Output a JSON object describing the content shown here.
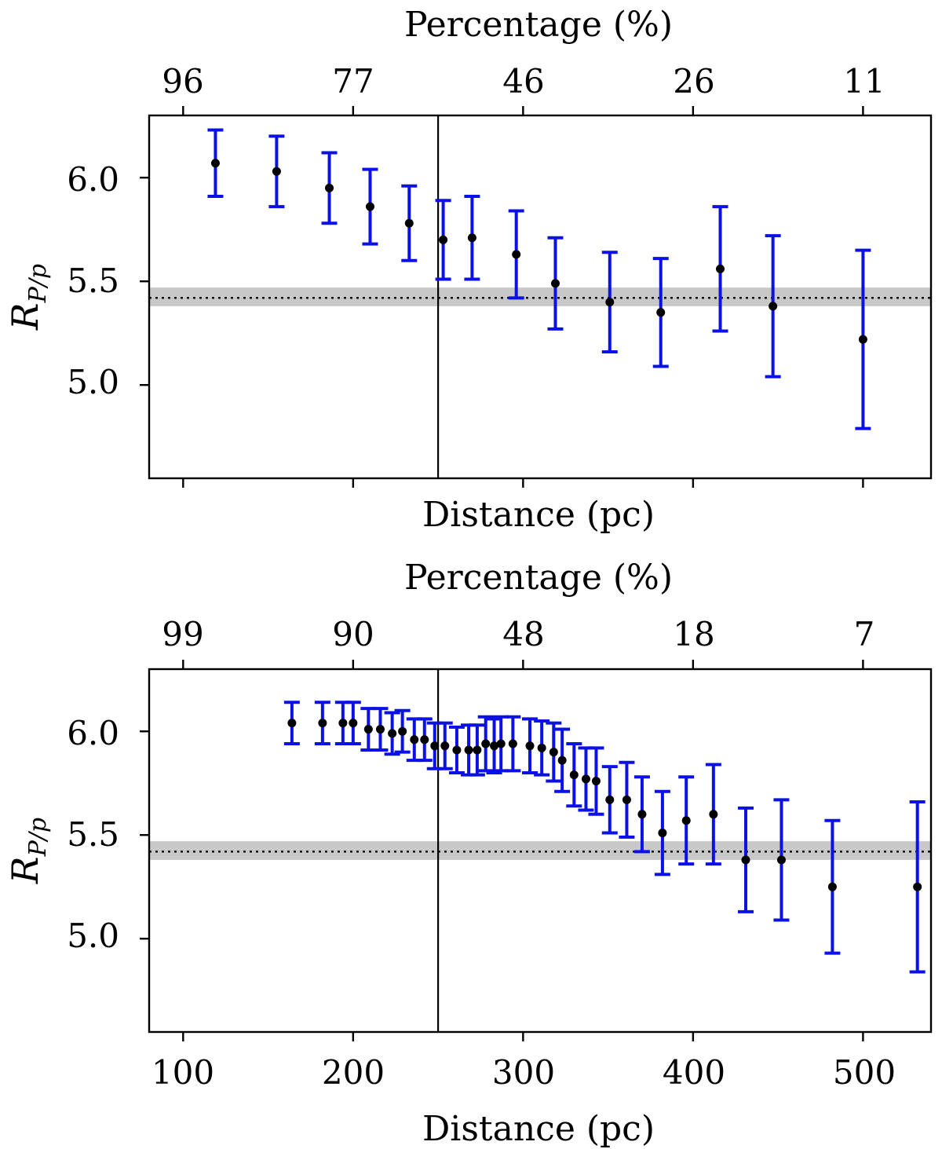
{
  "chart_data": [
    {
      "type": "errorbar",
      "title": "",
      "xlabel": "Distance (pc)",
      "xlabel_top": "Percentage (%)",
      "ylabel_main": "R",
      "ylabel_sub": "P/p",
      "xlim": [
        80,
        540
      ],
      "ylim": [
        4.55,
        6.3
      ],
      "yticks": [
        5.0,
        5.5,
        6.0
      ],
      "ytick_labels": [
        "5.0",
        "5.5",
        "6.0"
      ],
      "xticks": [
        100,
        200,
        300,
        400,
        500
      ],
      "xtick_labels": [],
      "top_tick_labels": [
        "96",
        "77",
        "46",
        "26",
        "11"
      ],
      "vline_x": 250,
      "hline_y": 5.42,
      "hband": [
        5.38,
        5.47
      ],
      "series": [
        {
          "name": "R_P/p",
          "color": "#0a10e6",
          "marker_color": "#000000",
          "x": [
            119,
            155,
            186,
            210,
            233,
            253,
            270,
            296,
            319,
            351,
            381,
            416,
            447,
            500
          ],
          "y": [
            6.07,
            6.03,
            5.95,
            5.86,
            5.78,
            5.7,
            5.71,
            5.63,
            5.49,
            5.4,
            5.35,
            5.56,
            5.38,
            5.22
          ],
          "err": [
            0.16,
            0.17,
            0.17,
            0.18,
            0.18,
            0.19,
            0.2,
            0.21,
            0.22,
            0.24,
            0.26,
            0.3,
            0.34,
            0.43
          ]
        }
      ]
    },
    {
      "type": "errorbar",
      "title": "",
      "xlabel": "Distance (pc)",
      "xlabel_top": "Percentage (%)",
      "ylabel_main": "R",
      "ylabel_sub": "P/p",
      "xlim": [
        80,
        540
      ],
      "ylim": [
        4.55,
        6.3
      ],
      "yticks": [
        5.0,
        5.5,
        6.0
      ],
      "ytick_labels": [
        "5.0",
        "5.5",
        "6.0"
      ],
      "xticks": [
        100,
        200,
        300,
        400,
        500
      ],
      "xtick_labels": [
        "100",
        "200",
        "300",
        "400",
        "500"
      ],
      "top_tick_labels": [
        "99",
        "90",
        "48",
        "18",
        "7"
      ],
      "vline_x": 250,
      "hline_y": 5.42,
      "hband": [
        5.38,
        5.47
      ],
      "series": [
        {
          "name": "R_P/p",
          "color": "#0a10e6",
          "marker_color": "#000000",
          "x": [
            164,
            182,
            194,
            200,
            209,
            216,
            223,
            229,
            236,
            242,
            248,
            254,
            261,
            268,
            273,
            278,
            283,
            287,
            294,
            304,
            311,
            318,
            323,
            330,
            337,
            343,
            351,
            361,
            370,
            382,
            396,
            412,
            431,
            452,
            482,
            532
          ],
          "y": [
            6.04,
            6.04,
            6.04,
            6.04,
            6.01,
            6.01,
            5.99,
            6.0,
            5.96,
            5.96,
            5.93,
            5.93,
            5.91,
            5.91,
            5.91,
            5.94,
            5.93,
            5.94,
            5.94,
            5.93,
            5.92,
            5.9,
            5.86,
            5.79,
            5.77,
            5.76,
            5.67,
            5.67,
            5.6,
            5.51,
            5.57,
            5.6,
            5.38,
            5.38,
            5.25,
            5.25
          ],
          "err": [
            0.1,
            0.1,
            0.1,
            0.1,
            0.1,
            0.1,
            0.1,
            0.1,
            0.1,
            0.1,
            0.11,
            0.11,
            0.11,
            0.12,
            0.12,
            0.13,
            0.13,
            0.13,
            0.13,
            0.13,
            0.13,
            0.14,
            0.15,
            0.15,
            0.15,
            0.16,
            0.16,
            0.18,
            0.18,
            0.2,
            0.21,
            0.24,
            0.25,
            0.29,
            0.32,
            0.41
          ]
        }
      ]
    }
  ]
}
